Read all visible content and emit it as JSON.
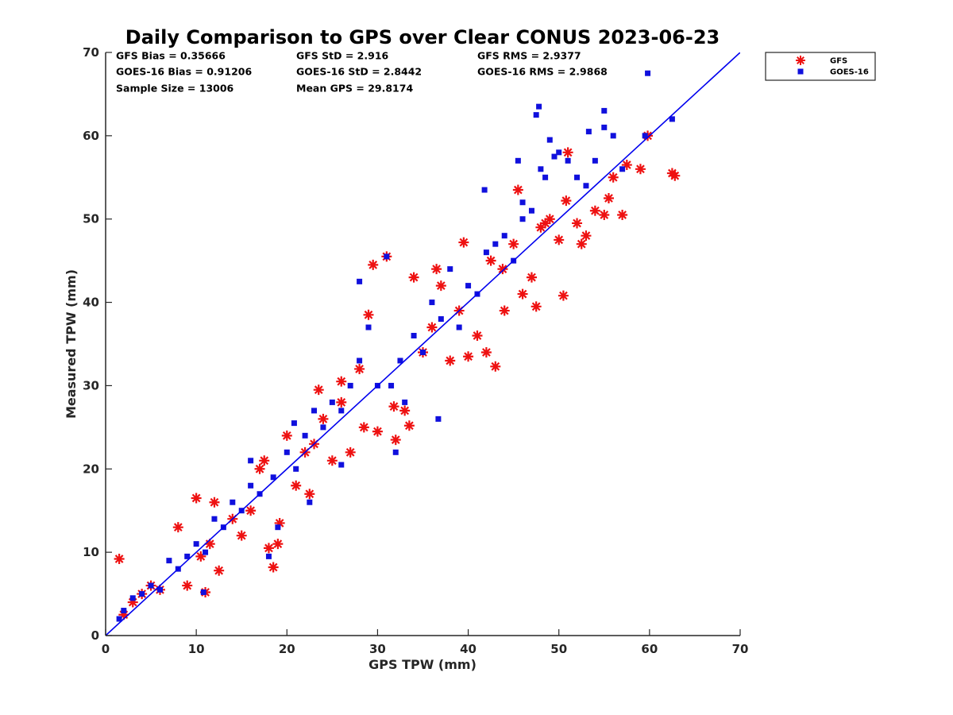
{
  "chart_data": {
    "type": "scatter",
    "title": "Daily Comparison to GPS over Clear CONUS 2023-06-23",
    "xlabel": "GPS TPW (mm)",
    "ylabel": "Measured TPW (mm)",
    "xlim": [
      0,
      70
    ],
    "ylim": [
      0,
      70
    ],
    "xticks": [
      "0",
      "10",
      "20",
      "30",
      "40",
      "50",
      "60",
      "70"
    ],
    "yticks": [
      "0",
      "10",
      "20",
      "30",
      "40",
      "50",
      "60",
      "70"
    ],
    "legend_position": "outside-top-right",
    "stats": [
      "GFS Bias = 0.35666",
      "GFS StD = 2.916",
      "GFS RMS = 2.9377",
      "GOES-16 Bias = 0.91206",
      "GOES-16 StD = 2.8442",
      "GOES-16 RMS = 2.9868",
      "Sample Size = 13006",
      "Mean GPS = 29.8174"
    ],
    "reference_line": {
      "name": "1:1 line",
      "color": "#0000ee",
      "from": [
        0,
        0
      ],
      "to": [
        70,
        70
      ]
    },
    "series": [
      {
        "name": "GFS",
        "marker": "asterisk",
        "color": "#ee1111",
        "x": [
          1.5,
          2,
          3,
          4,
          5,
          6,
          8,
          9,
          10,
          11,
          11.5,
          12,
          14,
          15,
          16,
          17,
          18,
          18.5,
          19,
          20,
          21,
          22,
          22.5,
          23,
          24,
          25,
          26,
          27,
          28,
          28.5,
          29,
          30,
          31,
          32,
          33,
          33.5,
          34,
          35,
          36,
          37,
          38,
          39,
          40,
          41,
          42,
          42.5,
          43,
          44,
          45,
          46,
          47,
          47.5,
          48,
          49,
          50,
          50.5,
          51,
          52,
          52.5,
          53,
          54,
          55,
          55.5,
          56,
          57,
          57.5,
          59,
          59.8,
          62.5,
          62.8,
          10.5,
          12.5,
          17.5,
          19.2,
          23.5,
          26,
          29.5,
          31.8,
          36.5,
          39.5,
          43.8,
          45.5,
          48.5,
          50.8
        ],
        "y": [
          9.2,
          2.5,
          4,
          5,
          6,
          5.5,
          13,
          6,
          16.5,
          5.2,
          11,
          16,
          14,
          12,
          15,
          20,
          10.5,
          8.2,
          11,
          24,
          18,
          22,
          17,
          23,
          26,
          21,
          28,
          22,
          32,
          25,
          38.5,
          24.5,
          45.5,
          23.5,
          27,
          25.2,
          43,
          34,
          37,
          42,
          33,
          39,
          33.5,
          36,
          34,
          45,
          32.3,
          39,
          47,
          41,
          43,
          39.5,
          49,
          50,
          47.5,
          40.8,
          58,
          49.5,
          47,
          48,
          51,
          50.5,
          52.5,
          55,
          50.5,
          56.5,
          56,
          60,
          55.5,
          55.2,
          9.5,
          7.8,
          21,
          13.5,
          29.5,
          30.5,
          44.5,
          27.5,
          44,
          47.2,
          44,
          53.5,
          49.5,
          52.2
        ]
      },
      {
        "name": "GOES-16",
        "marker": "square",
        "color": "#1010dd",
        "x": [
          1.5,
          2,
          3,
          4,
          5,
          6,
          7,
          8,
          9,
          10,
          11,
          12,
          13,
          14,
          15,
          16,
          17,
          18,
          19,
          20,
          21,
          22,
          22.5,
          23,
          24,
          25,
          26,
          27,
          28,
          29,
          30,
          31,
          32,
          32.5,
          33,
          34,
          35,
          36,
          37,
          38,
          39,
          40,
          41,
          42,
          43,
          44,
          45,
          46,
          47,
          47.5,
          48,
          48.5,
          49,
          50,
          51,
          52,
          53,
          54,
          55,
          56,
          57,
          59.5,
          59.8,
          62.5,
          10.8,
          16,
          18.5,
          20.8,
          26,
          28,
          31.5,
          36.7,
          41.8,
          45.5,
          46,
          47.8,
          49.5,
          53.3,
          55
        ],
        "y": [
          2,
          3,
          4.5,
          5,
          6,
          5.5,
          9,
          8,
          9.5,
          11,
          10,
          14,
          13,
          16,
          15,
          18,
          17,
          9.5,
          13,
          22,
          20,
          24,
          16,
          27,
          25,
          28,
          27,
          30,
          33,
          37,
          30,
          45.5,
          22,
          33,
          28,
          36,
          34,
          40,
          38,
          44,
          37,
          42,
          41,
          46,
          47,
          48,
          45,
          50,
          51,
          62.5,
          56,
          55,
          59.5,
          58,
          57,
          55,
          54,
          57,
          63,
          60,
          56,
          60,
          67.5,
          62,
          5.2,
          21,
          19,
          25.5,
          20.5,
          42.5,
          30,
          26,
          53.5,
          57,
          52,
          63.5,
          57.5,
          60.5,
          61
        ]
      }
    ]
  }
}
